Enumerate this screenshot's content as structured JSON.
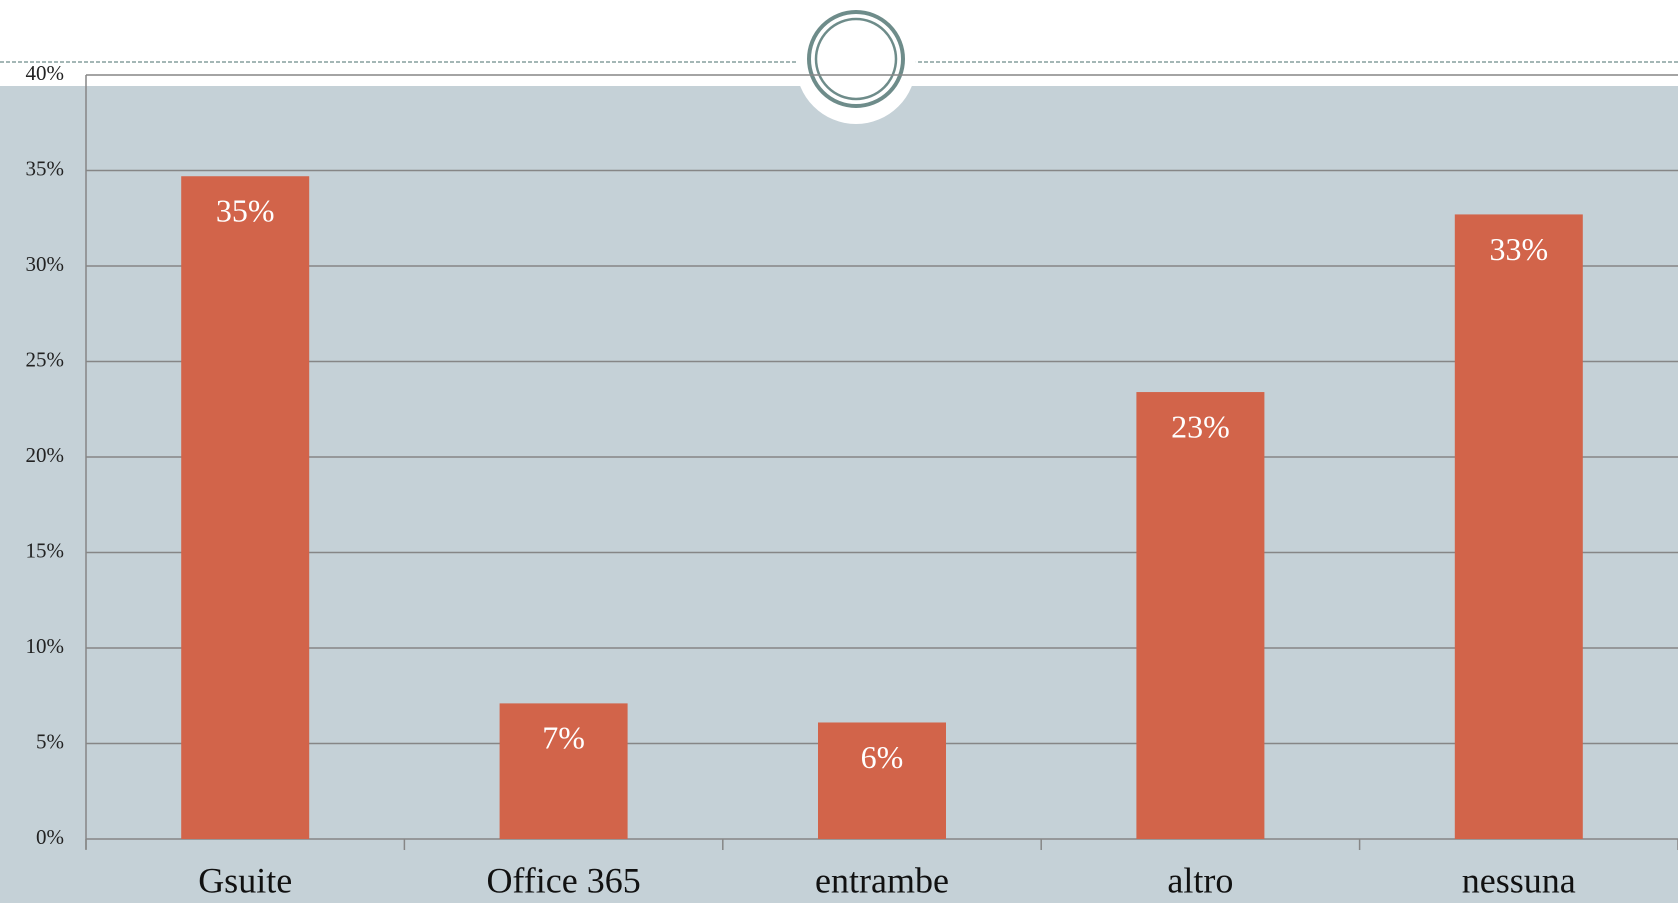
{
  "chart_data": {
    "type": "bar",
    "categories": [
      "Gsuite",
      "Office 365",
      "entrambe",
      "altro",
      "nessuna"
    ],
    "values": [
      34.7,
      7.1,
      6.1,
      23.4,
      32.7
    ],
    "value_labels": [
      "35%",
      "7%",
      "6%",
      "23%",
      "33%"
    ],
    "color": "#d2644a",
    "ylim": [
      0,
      40
    ],
    "yticks": [
      {
        "value": 0,
        "label": "0%"
      },
      {
        "value": 5,
        "label": "5%"
      },
      {
        "value": 10,
        "label": "10%"
      },
      {
        "value": 15,
        "label": "15%"
      },
      {
        "value": 20,
        "label": "20%"
      },
      {
        "value": 25,
        "label": "25%"
      },
      {
        "value": 30,
        "label": "30%"
      },
      {
        "value": 35,
        "label": "35%"
      },
      {
        "value": 40,
        "label": "40%"
      }
    ],
    "grid": true
  }
}
